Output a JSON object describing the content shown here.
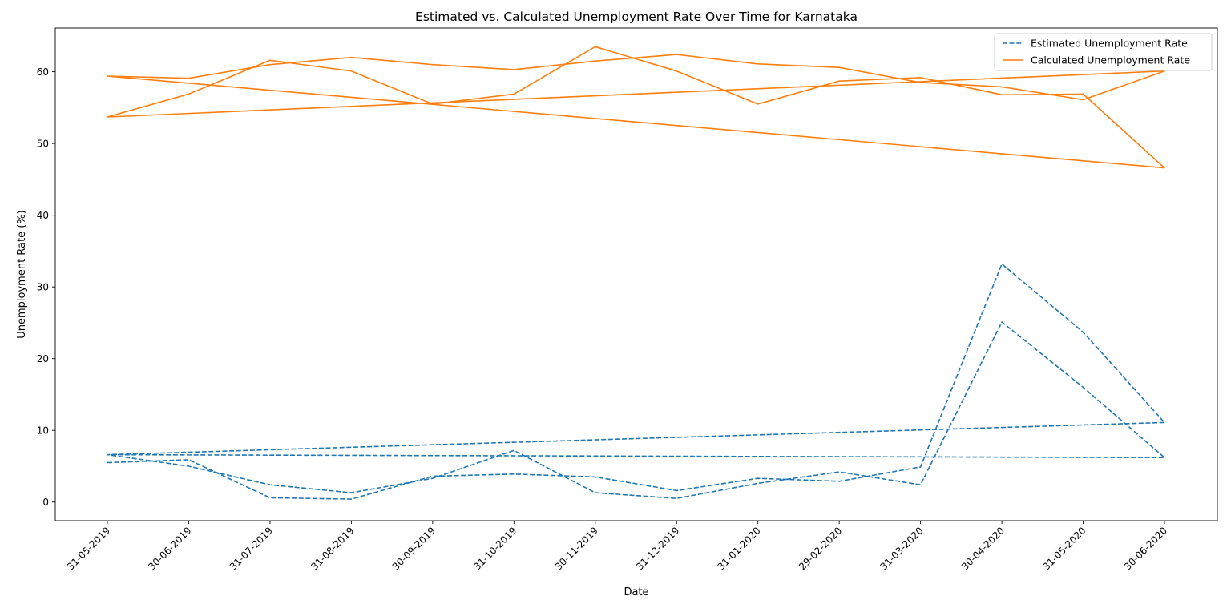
{
  "chart_data": {
    "type": "line",
    "title": "Estimated vs. Calculated Unemployment Rate Over Time for Karnataka",
    "xlabel": "Date",
    "ylabel": "Unemployment Rate (%)",
    "categories": [
      "31-05-2019",
      "30-06-2019",
      "31-07-2019",
      "31-08-2019",
      "30-09-2019",
      "31-10-2019",
      "30-11-2019",
      "31-12-2019",
      "31-01-2020",
      "29-02-2020",
      "31-03-2020",
      "30-04-2020",
      "31-05-2020",
      "30-06-2020"
    ],
    "yticks": [
      0,
      10,
      20,
      30,
      40,
      50,
      60
    ],
    "ylim": [
      -2.6,
      66.1
    ],
    "grid": false,
    "legend_position": "top-right",
    "series": [
      {
        "name": "Estimated Unemployment Rate",
        "color": "#1f77b4",
        "style": "dashed",
        "x": [
          "31-05-2019",
          "30-06-2019",
          "31-07-2019",
          "31-08-2019",
          "30-09-2019",
          "31-10-2019",
          "30-11-2019",
          "31-12-2019",
          "31-01-2020",
          "29-02-2020",
          "31-03-2020",
          "30-04-2020",
          "31-05-2020",
          "30-06-2020",
          "31-05-2019",
          "30-06-2019",
          "31-07-2019",
          "31-08-2019",
          "30-09-2019",
          "31-10-2019",
          "30-11-2019",
          "31-12-2019",
          "31-01-2020",
          "29-02-2020",
          "31-03-2020",
          "30-04-2020",
          "31-05-2020",
          "30-06-2020",
          "31-05-2019"
        ],
        "values": [
          5.5,
          5.9,
          0.6,
          0.4,
          3.6,
          3.9,
          3.5,
          1.6,
          3.3,
          2.9,
          4.9,
          33.2,
          23.7,
          11.1,
          6.6,
          5.0,
          2.4,
          1.3,
          3.3,
          7.2,
          1.3,
          0.5,
          2.6,
          4.2,
          2.4,
          25.1,
          16.0,
          6.2,
          6.6
        ]
      },
      {
        "name": "Calculated Unemployment Rate",
        "color": "#ff7f0e",
        "style": "solid",
        "x": [
          "31-05-2019",
          "30-06-2019",
          "31-07-2019",
          "31-08-2019",
          "30-09-2019",
          "31-10-2019",
          "30-11-2019",
          "31-12-2019",
          "31-01-2020",
          "29-02-2020",
          "31-03-2020",
          "30-04-2020",
          "31-05-2020",
          "30-06-2020",
          "31-05-2019",
          "30-06-2019",
          "31-07-2019",
          "31-08-2019",
          "30-09-2019",
          "31-10-2019",
          "30-11-2019",
          "31-12-2019",
          "31-01-2020",
          "29-02-2020",
          "31-03-2020",
          "30-04-2020",
          "31-05-2020",
          "30-06-2020",
          "31-05-2019"
        ],
        "values": [
          59.4,
          59.1,
          61.0,
          62.0,
          61.0,
          60.3,
          61.5,
          62.4,
          61.1,
          60.6,
          58.5,
          57.9,
          56.1,
          60.1,
          53.7,
          56.9,
          61.6,
          60.1,
          55.5,
          56.9,
          63.5,
          60.1,
          55.5,
          58.7,
          59.2,
          56.8,
          56.9,
          46.6,
          59.4
        ]
      }
    ]
  }
}
